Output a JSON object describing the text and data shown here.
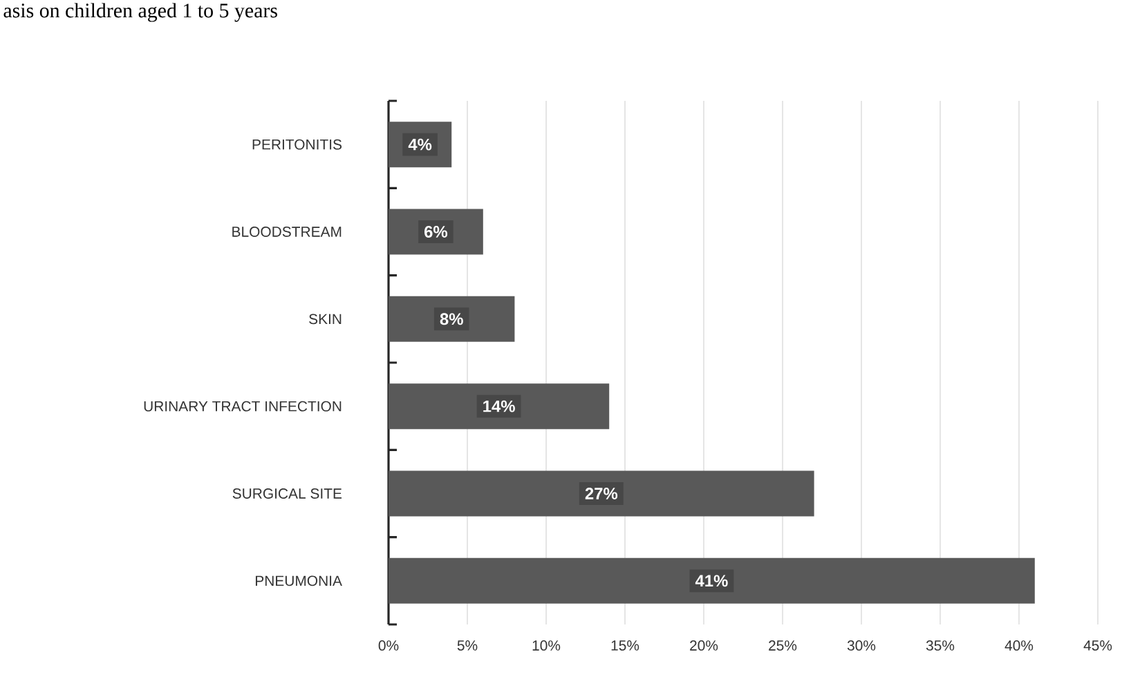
{
  "chart_data": {
    "type": "bar",
    "orientation": "horizontal",
    "title": "asis on children aged 1 to 5 years",
    "categories": [
      "PERITONITIS",
      "BLOODSTREAM",
      "SKIN",
      "URINARY TRACT INFECTION",
      "SURGICAL SITE",
      "PNEUMONIA"
    ],
    "values": [
      4,
      6,
      8,
      14,
      27,
      41
    ],
    "value_labels": [
      "4%",
      "6%",
      "8%",
      "14%",
      "27%",
      "41%"
    ],
    "color": "#595959",
    "xlim": [
      0,
      45
    ],
    "xticks": [
      {
        "value": 0,
        "label": "0%"
      },
      {
        "value": 5,
        "label": "5%"
      },
      {
        "value": 10,
        "label": "10%"
      },
      {
        "value": 15,
        "label": "15%"
      },
      {
        "value": 20,
        "label": "20%"
      },
      {
        "value": 25,
        "label": "25%"
      },
      {
        "value": 30,
        "label": "30%"
      },
      {
        "value": 35,
        "label": "35%"
      },
      {
        "value": 40,
        "label": "40%"
      },
      {
        "value": 45,
        "label": "45%"
      }
    ],
    "grid": "x"
  }
}
